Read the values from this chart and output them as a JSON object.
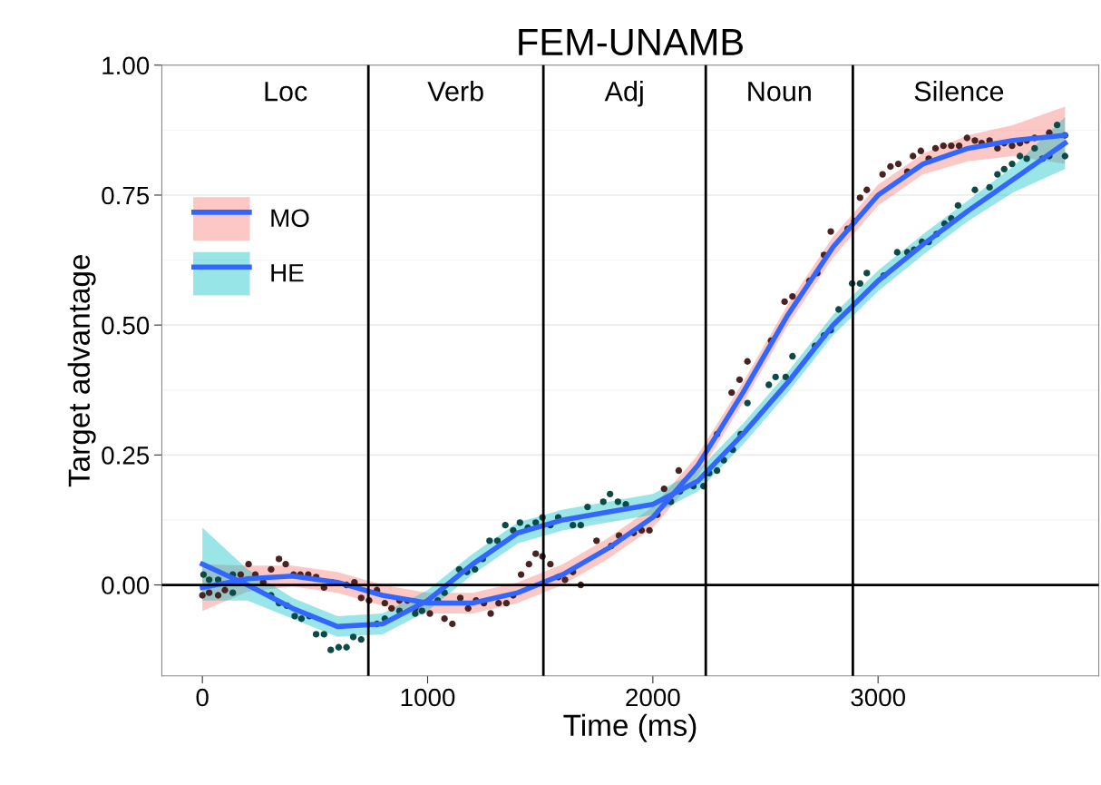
{
  "chart_data": {
    "type": "line",
    "title": "FEM-UNAMB",
    "xlabel": "Time (ms)",
    "ylabel": "Target advantage",
    "xlim": [
      -180,
      3980
    ],
    "ylim": [
      -0.175,
      1.0
    ],
    "xticks": [
      0,
      1000,
      2000,
      3000
    ],
    "yticks": [
      {
        "value": 0,
        "label": "0.00"
      },
      {
        "value": 0.25,
        "label": "0.25"
      },
      {
        "value": 0.5,
        "label": "0.50"
      },
      {
        "value": 0.75,
        "label": "0.75"
      },
      {
        "value": 1.0,
        "label": "1.00"
      }
    ],
    "grid": "y",
    "legend": "top left",
    "marker": "none",
    "line_style": "solid",
    "series": [
      {
        "name": "MO",
        "color": "#3366ff",
        "colors": [
          "#f8766d",
          "#f8766d",
          "#f8766d",
          "#f8766d",
          "#f8766d",
          "#f8766d",
          "#f8766d",
          "#f8766d",
          "#f8766d",
          "#f8766d",
          "#f8766d",
          "#f8766d",
          "#f8766d",
          "#f8766d",
          "#f8766d",
          "#f8766d",
          "#f8766d",
          "#f8766d",
          "#f8766d",
          "#f8766d"
        ],
        "x": [
          0,
          200,
          400,
          600,
          800,
          1000,
          1200,
          1400,
          1600,
          1800,
          2000,
          2200,
          2400,
          2600,
          2800,
          3000,
          3200,
          3400,
          3600,
          3830
        ],
        "values": [
          -0.005,
          0.012,
          0.017,
          0.005,
          -0.02,
          -0.035,
          -0.035,
          -0.015,
          0.02,
          0.07,
          0.13,
          0.23,
          0.37,
          0.52,
          0.65,
          0.75,
          0.81,
          0.84,
          0.855,
          0.865
        ],
        "lower": [
          -0.05,
          -0.013,
          -0.003,
          -0.015,
          -0.04,
          -0.055,
          -0.055,
          -0.035,
          0.0,
          0.05,
          0.11,
          0.21,
          0.35,
          0.5,
          0.63,
          0.73,
          0.79,
          0.815,
          0.825,
          0.81
        ],
        "upper": [
          0.04,
          0.037,
          0.037,
          0.025,
          0.0,
          -0.015,
          -0.015,
          0.005,
          0.04,
          0.09,
          0.15,
          0.25,
          0.39,
          0.54,
          0.67,
          0.77,
          0.83,
          0.865,
          0.885,
          0.92
        ]
      },
      {
        "name": "HE",
        "color": "#3366ff",
        "colors": [
          "#00bfc4",
          "#00bfc4",
          "#00bfc4",
          "#00bfc4",
          "#00bfc4",
          "#00bfc4",
          "#00bfc4",
          "#00bfc4",
          "#00bfc4",
          "#00bfc4",
          "#00bfc4",
          "#00bfc4",
          "#00bfc4",
          "#00bfc4",
          "#00bfc4",
          "#00bfc4",
          "#00bfc4",
          "#00bfc4",
          "#00bfc4",
          "#00bfc4"
        ],
        "x": [
          0,
          200,
          400,
          600,
          800,
          1000,
          1200,
          1400,
          1600,
          1800,
          2000,
          2200,
          2400,
          2600,
          2800,
          3000,
          3200,
          3400,
          3600,
          3830
        ],
        "values": [
          0.04,
          0.0,
          -0.045,
          -0.08,
          -0.075,
          -0.03,
          0.04,
          0.1,
          0.125,
          0.14,
          0.155,
          0.2,
          0.29,
          0.39,
          0.5,
          0.585,
          0.655,
          0.72,
          0.78,
          0.85
        ],
        "lower": [
          -0.03,
          -0.03,
          -0.065,
          -0.1,
          -0.095,
          -0.05,
          0.02,
          0.08,
          0.105,
          0.12,
          0.135,
          0.18,
          0.27,
          0.37,
          0.48,
          0.565,
          0.635,
          0.7,
          0.755,
          0.8
        ],
        "upper": [
          0.11,
          0.03,
          -0.025,
          -0.06,
          -0.055,
          -0.01,
          0.06,
          0.12,
          0.145,
          0.16,
          0.175,
          0.22,
          0.31,
          0.41,
          0.52,
          0.605,
          0.675,
          0.74,
          0.805,
          0.9
        ]
      },
      {
        "type": "scatter",
        "color": "#4a2222",
        "marker": "circle",
        "x": [
          0,
          30,
          70,
          100,
          170,
          205,
          235,
          270,
          305,
          340,
          370,
          405,
          435,
          470,
          505,
          540,
          575,
          640,
          675,
          705,
          740,
          775,
          810,
          840,
          875,
          910,
          945,
          1010,
          1075,
          1110,
          1145,
          1180,
          1215,
          1250,
          1280,
          1315,
          1350,
          1380,
          1415,
          1450,
          1480,
          1510,
          1545,
          1580,
          1610,
          1645,
          1680,
          1750,
          1815,
          1850,
          1915,
          1950,
          1985,
          2020,
          2050,
          2115,
          2285,
          2350,
          2385,
          2420,
          2525,
          2585,
          2620,
          2695,
          2730,
          2760,
          2790,
          2865,
          2895,
          2920,
          2950,
          3020,
          3055,
          3090,
          3130,
          3155,
          3190,
          3225,
          3255,
          3290,
          3325,
          3360,
          3395,
          3430,
          3460,
          3495,
          3530,
          3560,
          3595,
          3630,
          3660,
          3695,
          3760,
          3830
        ],
        "values": [
          -0.02,
          -0.015,
          -0.02,
          -0.01,
          0.02,
          0.04,
          0.02,
          0.005,
          0.03,
          0.05,
          0.04,
          0.02,
          0.02,
          0.02,
          0.015,
          -0.005,
          0.005,
          0.0,
          0.005,
          -0.025,
          -0.03,
          -0.01,
          -0.035,
          -0.045,
          -0.03,
          -0.03,
          -0.045,
          -0.055,
          -0.065,
          -0.075,
          -0.025,
          -0.045,
          -0.03,
          -0.035,
          -0.055,
          -0.035,
          -0.035,
          -0.02,
          0.02,
          0.04,
          0.06,
          0.055,
          0.04,
          0.015,
          0.01,
          0.025,
          0.0,
          0.085,
          0.075,
          0.095,
          0.1,
          0.105,
          0.105,
          0.135,
          0.185,
          0.22,
          0.29,
          0.37,
          0.395,
          0.43,
          0.47,
          0.545,
          0.555,
          0.585,
          0.6,
          0.635,
          0.68,
          0.685,
          0.7,
          0.745,
          0.76,
          0.79,
          0.805,
          0.81,
          0.795,
          0.825,
          0.835,
          0.82,
          0.84,
          0.845,
          0.845,
          0.845,
          0.86,
          0.855,
          0.85,
          0.855,
          0.84,
          0.85,
          0.845,
          0.85,
          0.855,
          0.86,
          0.87,
          0.865
        ]
      },
      {
        "type": "scatter",
        "color": "#0b4a47",
        "marker": "circle",
        "x": [
          5,
          30,
          70,
          135,
          135,
          305,
          340,
          375,
          410,
          440,
          475,
          505,
          540,
          570,
          605,
          640,
          670,
          705,
          775,
          810,
          875,
          945,
          975,
          1045,
          1075,
          1140,
          1175,
          1210,
          1245,
          1275,
          1310,
          1345,
          1380,
          1410,
          1445,
          1480,
          1510,
          1545,
          1580,
          1645,
          1680,
          1710,
          1780,
          1810,
          1845,
          1880,
          2080,
          2120,
          2180,
          2225,
          2250,
          2285,
          2315,
          2355,
          2390,
          2420,
          2515,
          2545,
          2590,
          2620,
          2720,
          2760,
          2790,
          2825,
          2885,
          2920,
          2950,
          3025,
          3085,
          3130,
          3160,
          3195,
          3225,
          3260,
          3295,
          3325,
          3355,
          3430,
          3495,
          3530,
          3560,
          3595,
          3630,
          3660,
          3695,
          3730,
          3760,
          3795,
          3830
        ],
        "values": [
          0.02,
          0.01,
          0.01,
          0.02,
          -0.015,
          -0.02,
          -0.035,
          -0.04,
          -0.06,
          -0.065,
          -0.06,
          -0.095,
          -0.095,
          -0.125,
          -0.12,
          -0.12,
          -0.1,
          -0.105,
          -0.075,
          -0.065,
          -0.05,
          -0.055,
          -0.05,
          -0.03,
          -0.015,
          0.03,
          0.025,
          0.03,
          0.05,
          0.085,
          0.085,
          0.115,
          0.105,
          0.12,
          0.11,
          0.12,
          0.13,
          0.115,
          0.13,
          0.115,
          0.115,
          0.15,
          0.16,
          0.175,
          0.16,
          0.155,
          0.16,
          0.18,
          0.19,
          0.19,
          0.215,
          0.22,
          0.24,
          0.26,
          0.29,
          0.35,
          0.385,
          0.4,
          0.4,
          0.44,
          0.46,
          0.48,
          0.49,
          0.53,
          0.58,
          0.58,
          0.6,
          0.595,
          0.64,
          0.64,
          0.645,
          0.66,
          0.66,
          0.675,
          0.695,
          0.705,
          0.73,
          0.76,
          0.765,
          0.79,
          0.8,
          0.81,
          0.825,
          0.82,
          0.84,
          0.82,
          0.825,
          0.885,
          0.825
        ]
      }
    ],
    "ref_lines": [
      {
        "axis": "x",
        "value": 737,
        "color": "#000000"
      },
      {
        "axis": "x",
        "value": 1514,
        "color": "#000000"
      },
      {
        "axis": "x",
        "value": 2235,
        "color": "#000000"
      },
      {
        "axis": "x",
        "value": 2888,
        "color": "#000000"
      },
      {
        "axis": "y",
        "value": 0,
        "color": "#000000"
      }
    ],
    "annotations": [
      "Loc",
      "Verb",
      "Adj",
      "Noun",
      "Silence"
    ]
  }
}
